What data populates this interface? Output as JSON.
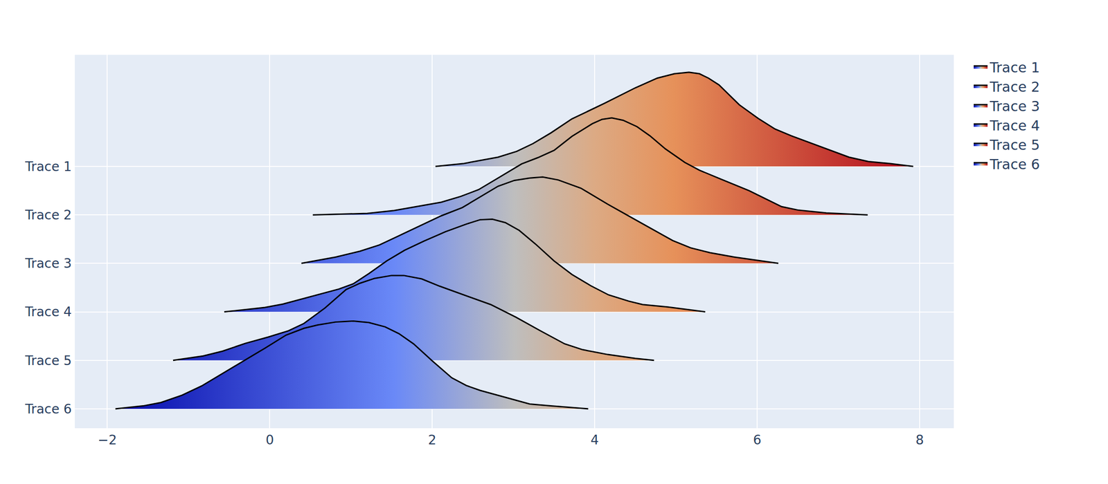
{
  "chart_data": {
    "type": "ridgeline",
    "color": "Plasma",
    "grid": true,
    "legend": "top-right",
    "xlim": [
      -2.4,
      8.42
    ],
    "xticks": [
      {
        "value": -2,
        "label": "−2"
      },
      0,
      2,
      4,
      6,
      8
    ],
    "ylim": [
      -0.4,
      7.3
    ],
    "yticks": [
      {
        "value": 0,
        "label": "Trace 6"
      },
      {
        "value": 1,
        "label": "Trace 5"
      },
      {
        "value": 2,
        "label": "Trace 4"
      },
      {
        "value": 3,
        "label": "Trace 3"
      },
      {
        "value": 4,
        "label": "Trace 2"
      },
      {
        "value": 5,
        "label": "Trace 1"
      }
    ],
    "series": [
      {
        "name": "Trace 1",
        "x": [
          2.04,
          2.39,
          2.81,
          3.04,
          3.24,
          3.46,
          3.72,
          4.12,
          4.5,
          4.77,
          4.98,
          5.16,
          5.29,
          5.4,
          5.53,
          5.78,
          6.02,
          6.22,
          6.42,
          6.77,
          7.13,
          7.37,
          7.63,
          7.92
        ],
        "values": [
          5.0,
          5.06,
          5.19,
          5.31,
          5.47,
          5.69,
          5.98,
          6.3,
          6.62,
          6.82,
          6.91,
          6.94,
          6.91,
          6.82,
          6.68,
          6.27,
          5.98,
          5.77,
          5.63,
          5.41,
          5.19,
          5.1,
          5.06,
          5.0
        ]
      },
      {
        "name": "Trace 2",
        "x": [
          0.53,
          1.2,
          1.53,
          1.81,
          2.11,
          2.35,
          2.57,
          2.81,
          3.1,
          3.3,
          3.5,
          3.72,
          3.97,
          4.09,
          4.21,
          4.35,
          4.52,
          4.68,
          4.87,
          5.11,
          5.29,
          5.55,
          5.9,
          6.3,
          6.5,
          6.85,
          7.36
        ],
        "values": [
          4.0,
          4.03,
          4.09,
          4.17,
          4.26,
          4.38,
          4.52,
          4.76,
          5.05,
          5.18,
          5.33,
          5.62,
          5.88,
          5.97,
          6.0,
          5.95,
          5.82,
          5.63,
          5.36,
          5.08,
          4.92,
          4.74,
          4.5,
          4.17,
          4.1,
          4.04,
          4.0
        ]
      },
      {
        "name": "Trace 3",
        "x": [
          0.39,
          0.81,
          1.11,
          1.35,
          1.63,
          1.92,
          2.11,
          2.37,
          2.59,
          2.81,
          3.01,
          3.2,
          3.36,
          3.55,
          3.83,
          4.16,
          4.5,
          4.96,
          5.18,
          5.42,
          5.72,
          5.97,
          6.26
        ],
        "values": [
          3.0,
          3.13,
          3.25,
          3.38,
          3.6,
          3.83,
          3.98,
          4.15,
          4.37,
          4.59,
          4.71,
          4.76,
          4.78,
          4.72,
          4.55,
          4.22,
          3.9,
          3.47,
          3.32,
          3.22,
          3.13,
          3.07,
          3.0
        ]
      },
      {
        "name": "Trace 4",
        "x": [
          -0.56,
          -0.06,
          0.16,
          0.5,
          0.85,
          1.03,
          1.22,
          1.44,
          1.66,
          1.9,
          2.16,
          2.42,
          2.59,
          2.74,
          2.9,
          3.07,
          3.27,
          3.5,
          3.72,
          3.95,
          4.17,
          4.42,
          4.59,
          4.9,
          5.36
        ],
        "values": [
          2.0,
          2.09,
          2.16,
          2.31,
          2.47,
          2.58,
          2.79,
          3.05,
          3.27,
          3.46,
          3.65,
          3.81,
          3.9,
          3.91,
          3.84,
          3.68,
          3.4,
          3.05,
          2.77,
          2.54,
          2.35,
          2.22,
          2.15,
          2.1,
          2.0
        ]
      },
      {
        "name": "Trace 5",
        "x": [
          -1.19,
          -0.82,
          -0.58,
          -0.3,
          -0.02,
          0.23,
          0.42,
          0.68,
          0.94,
          1.11,
          1.29,
          1.5,
          1.65,
          1.87,
          2.09,
          2.42,
          2.72,
          3.03,
          3.33,
          3.63,
          3.85,
          4.16,
          4.5,
          4.73
        ],
        "values": [
          1.0,
          1.09,
          1.19,
          1.35,
          1.48,
          1.61,
          1.76,
          2.08,
          2.46,
          2.59,
          2.69,
          2.75,
          2.75,
          2.68,
          2.53,
          2.33,
          2.15,
          1.89,
          1.61,
          1.34,
          1.22,
          1.12,
          1.04,
          1.0
        ]
      },
      {
        "name": "Trace 6",
        "x": [
          -1.9,
          -1.56,
          -1.34,
          -1.08,
          -0.84,
          -0.58,
          -0.32,
          -0.06,
          0.2,
          0.42,
          0.59,
          0.81,
          1.03,
          1.22,
          1.42,
          1.59,
          1.77,
          2.0,
          2.24,
          2.42,
          2.59,
          2.85,
          3.2,
          3.46,
          3.92
        ],
        "values": [
          0.0,
          0.06,
          0.13,
          0.28,
          0.47,
          0.73,
          0.99,
          1.25,
          1.52,
          1.66,
          1.73,
          1.79,
          1.81,
          1.78,
          1.69,
          1.55,
          1.34,
          0.99,
          0.64,
          0.48,
          0.38,
          0.26,
          0.1,
          0.06,
          0.0
        ]
      }
    ]
  }
}
